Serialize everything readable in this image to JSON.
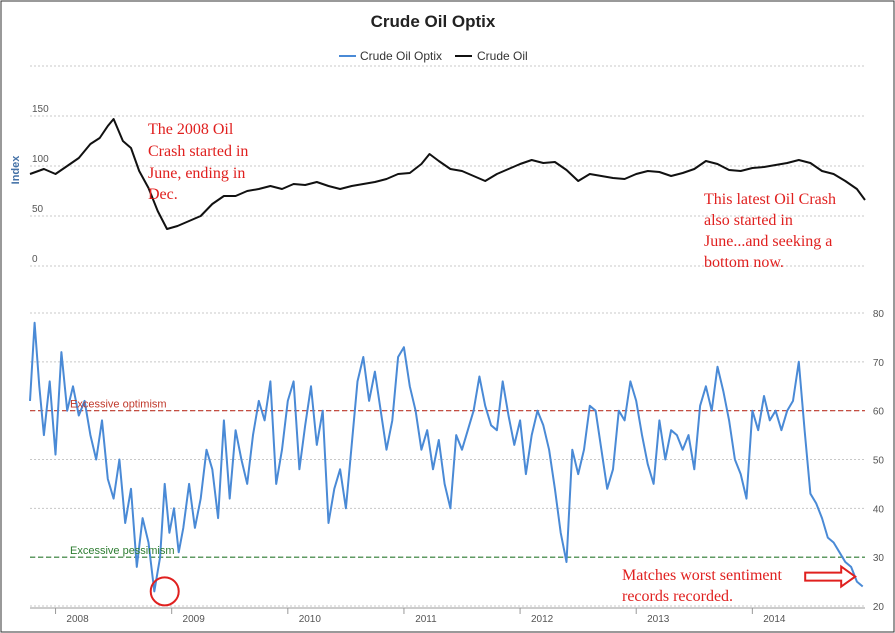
{
  "chart_data": {
    "title": "Crude Oil Optix",
    "legend": [
      {
        "name": "Crude Oil Optix",
        "color": "#4a8ad6"
      },
      {
        "name": "Crude Oil",
        "color": "#111111"
      }
    ],
    "legend_position": "top-center",
    "x_start": 2007.78,
    "x_end": 2014.97,
    "x_ticks": [
      "2008",
      "2009",
      "2010",
      "2011",
      "2012",
      "2013",
      "2014"
    ],
    "top_panel": {
      "type": "line",
      "ylabel": "Index",
      "ylim": [
        0,
        200
      ],
      "y_ticks": [
        "0",
        "50",
        "100",
        "150"
      ],
      "series_name": "Crude Oil",
      "x": [
        2007.78,
        2007.9,
        2008.0,
        2008.1,
        2008.2,
        2008.3,
        2008.38,
        2008.45,
        2008.5,
        2008.58,
        2008.65,
        2008.72,
        2008.8,
        2008.88,
        2008.96,
        2009.05,
        2009.15,
        2009.25,
        2009.35,
        2009.45,
        2009.55,
        2009.65,
        2009.75,
        2009.85,
        2009.95,
        2010.05,
        2010.15,
        2010.25,
        2010.35,
        2010.45,
        2010.55,
        2010.65,
        2010.75,
        2010.85,
        2010.95,
        2011.05,
        2011.15,
        2011.22,
        2011.3,
        2011.4,
        2011.5,
        2011.6,
        2011.7,
        2011.8,
        2011.9,
        2012.0,
        2012.1,
        2012.2,
        2012.3,
        2012.4,
        2012.5,
        2012.6,
        2012.7,
        2012.8,
        2012.9,
        2013.0,
        2013.1,
        2013.2,
        2013.3,
        2013.4,
        2013.5,
        2013.6,
        2013.7,
        2013.8,
        2013.9,
        2014.0,
        2014.1,
        2014.2,
        2014.3,
        2014.4,
        2014.5,
        2014.6,
        2014.7,
        2014.8,
        2014.9,
        2014.97
      ],
      "y": [
        92,
        97,
        92,
        100,
        108,
        122,
        128,
        140,
        147,
        125,
        118,
        95,
        78,
        55,
        37,
        40,
        45,
        50,
        62,
        70,
        70,
        75,
        77,
        80,
        77,
        82,
        81,
        84,
        80,
        77,
        80,
        82,
        84,
        87,
        92,
        93,
        102,
        112,
        105,
        97,
        95,
        90,
        85,
        92,
        97,
        102,
        106,
        103,
        104,
        96,
        85,
        92,
        90,
        88,
        87,
        92,
        95,
        94,
        90,
        93,
        97,
        105,
        102,
        96,
        95,
        98,
        99,
        101,
        103,
        106,
        103,
        95,
        92,
        85,
        77,
        66
      ]
    },
    "bottom_panel": {
      "type": "line",
      "ylim": [
        20,
        80
      ],
      "y_ticks": [
        "20",
        "30",
        "40",
        "50",
        "60",
        "70",
        "80"
      ],
      "series_name": "Crude Oil Optix",
      "x": [
        2007.78,
        2007.82,
        2007.86,
        2007.9,
        2007.95,
        2008.0,
        2008.05,
        2008.1,
        2008.15,
        2008.2,
        2008.25,
        2008.3,
        2008.35,
        2008.4,
        2008.45,
        2008.5,
        2008.55,
        2008.6,
        2008.65,
        2008.7,
        2008.75,
        2008.8,
        2008.85,
        2008.9,
        2008.94,
        2008.98,
        2009.02,
        2009.06,
        2009.1,
        2009.15,
        2009.2,
        2009.25,
        2009.3,
        2009.35,
        2009.4,
        2009.45,
        2009.5,
        2009.55,
        2009.6,
        2009.65,
        2009.7,
        2009.75,
        2009.8,
        2009.85,
        2009.9,
        2009.95,
        2010.0,
        2010.05,
        2010.1,
        2010.15,
        2010.2,
        2010.25,
        2010.3,
        2010.35,
        2010.4,
        2010.45,
        2010.5,
        2010.55,
        2010.6,
        2010.65,
        2010.7,
        2010.75,
        2010.8,
        2010.85,
        2010.9,
        2010.95,
        2011.0,
        2011.05,
        2011.1,
        2011.15,
        2011.2,
        2011.25,
        2011.3,
        2011.35,
        2011.4,
        2011.45,
        2011.5,
        2011.55,
        2011.6,
        2011.65,
        2011.7,
        2011.75,
        2011.8,
        2011.85,
        2011.9,
        2011.95,
        2012.0,
        2012.05,
        2012.1,
        2012.15,
        2012.2,
        2012.25,
        2012.3,
        2012.35,
        2012.4,
        2012.45,
        2012.5,
        2012.55,
        2012.6,
        2012.65,
        2012.7,
        2012.75,
        2012.8,
        2012.85,
        2012.9,
        2012.95,
        2013.0,
        2013.05,
        2013.1,
        2013.15,
        2013.2,
        2013.25,
        2013.3,
        2013.35,
        2013.4,
        2013.45,
        2013.5,
        2013.55,
        2013.6,
        2013.65,
        2013.7,
        2013.75,
        2013.8,
        2013.85,
        2013.9,
        2013.95,
        2014.0,
        2014.05,
        2014.1,
        2014.15,
        2014.2,
        2014.25,
        2014.3,
        2014.35,
        2014.4,
        2014.45,
        2014.5,
        2014.55,
        2014.6,
        2014.65,
        2014.7,
        2014.75,
        2014.8,
        2014.85,
        2014.9,
        2014.95
      ],
      "y": [
        62,
        78,
        65,
        55,
        66,
        51,
        72,
        60,
        65,
        59,
        62,
        55,
        50,
        58,
        46,
        42,
        50,
        37,
        44,
        28,
        38,
        33,
        23,
        30,
        45,
        35,
        40,
        31,
        36,
        45,
        36,
        42,
        52,
        48,
        38,
        58,
        42,
        56,
        50,
        45,
        55,
        62,
        58,
        66,
        45,
        52,
        62,
        66,
        48,
        57,
        65,
        53,
        60,
        37,
        44,
        48,
        40,
        53,
        66,
        71,
        62,
        68,
        60,
        52,
        58,
        71,
        73,
        65,
        60,
        52,
        56,
        48,
        54,
        45,
        40,
        55,
        52,
        56,
        60,
        67,
        61,
        57,
        56,
        66,
        59,
        53,
        58,
        47,
        55,
        60,
        57,
        52,
        44,
        35,
        29,
        52,
        47,
        52,
        61,
        60,
        52,
        44,
        48,
        60,
        58,
        66,
        62,
        55,
        49,
        45,
        58,
        50,
        56,
        55,
        52,
        55,
        48,
        61,
        65,
        60,
        69,
        64,
        58,
        50,
        47,
        42,
        60,
        56,
        63,
        58,
        60,
        56,
        60,
        62,
        70,
        56,
        43,
        41,
        38,
        34,
        33,
        31,
        29,
        28,
        25,
        24
      ]
    },
    "reference_lines": [
      {
        "label": "Excessive optimism",
        "value": 60,
        "color": "#c0392b"
      },
      {
        "label": "Excessive pessimism",
        "value": 30,
        "color": "#2e7d32"
      }
    ],
    "annotations": [
      {
        "id": "crash-2008",
        "lines": [
          "The 2008 Oil",
          "Crash started in",
          "June, ending in",
          "Dec."
        ]
      },
      {
        "id": "latest-crash",
        "lines": [
          "This latest Oil Crash",
          "also started in",
          "June...and seeking a",
          "bottom now."
        ]
      },
      {
        "id": "worst-sentiment",
        "lines": [
          "Matches worst sentiment",
          "records recorded."
        ]
      }
    ],
    "highlight_circle_x": 2008.94,
    "highlight_circle_y": 23,
    "arrow_target_x": 2014.92,
    "arrow_target_y": 25
  }
}
